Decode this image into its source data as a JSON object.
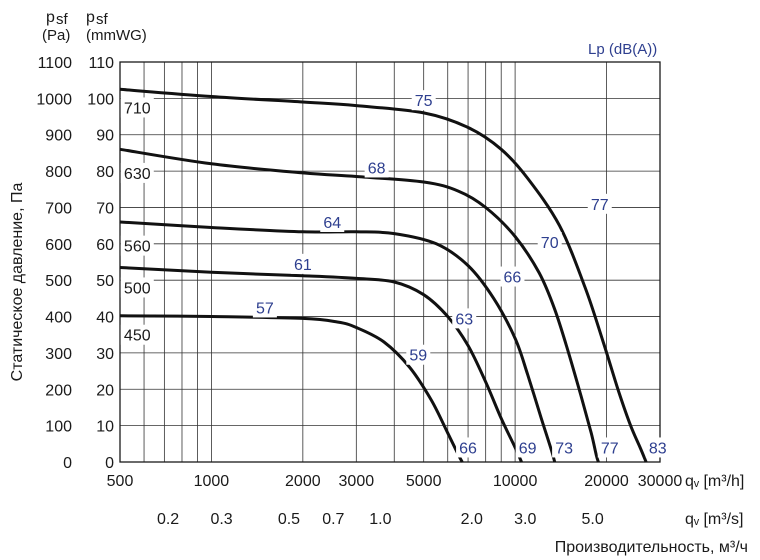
{
  "chart_data": {
    "type": "line",
    "title": "",
    "ylabel": "Статическое давление, Па",
    "ylabel_top_pa": "p",
    "ylabel_top_pa_sub": "sf",
    "ylabel_top_pa_unit": "(Pa)",
    "ylabel_top_mm": "p",
    "ylabel_top_mm_sub": "sf",
    "ylabel_top_mm_unit": "(mmWG)",
    "lp_label": "Lp (dB(A))",
    "xlabel": "Производительность, м³/ч",
    "x_unit_m3h": "qᵥ [m³/h]",
    "x_unit_m3s": "qᵥ [m³/s]",
    "x_scale": "log",
    "xlim": [
      500,
      30000
    ],
    "ylim": [
      0,
      1100
    ],
    "y_ticks_pa": [
      0,
      100,
      200,
      300,
      400,
      500,
      600,
      700,
      800,
      900,
      1000,
      1100
    ],
    "y_ticks_mmwg": [
      0,
      10,
      20,
      30,
      40,
      50,
      60,
      70,
      80,
      90,
      100,
      110
    ],
    "x_ticks_m3h": [
      {
        "value": 500,
        "label": "500"
      },
      {
        "value": 1000,
        "label": "1000"
      },
      {
        "value": 2000,
        "label": "2000"
      },
      {
        "value": 3000,
        "label": "3000"
      },
      {
        "value": 5000,
        "label": "5000"
      },
      {
        "value": 10000,
        "label": "10000"
      },
      {
        "value": 20000,
        "label": "20000"
      },
      {
        "value": 30000,
        "label": "30000"
      }
    ],
    "x_ticks_m3s": [
      {
        "value": 720,
        "label": "0.2"
      },
      {
        "value": 1080,
        "label": "0.3"
      },
      {
        "value": 1800,
        "label": "0.5"
      },
      {
        "value": 2520,
        "label": "0.7"
      },
      {
        "value": 3600,
        "label": "1.0"
      },
      {
        "value": 7200,
        "label": "2.0"
      },
      {
        "value": 10800,
        "label": "3.0"
      },
      {
        "value": 18000,
        "label": "5.0"
      }
    ],
    "gridlines_x": [
      600,
      700,
      800,
      900,
      1000,
      2000,
      3000,
      4000,
      5000,
      6000,
      7000,
      8000,
      9000,
      10000,
      20000,
      30000
    ],
    "series": [
      {
        "name": "710",
        "points": [
          [
            500,
            1025
          ],
          [
            1000,
            1005
          ],
          [
            2000,
            990
          ],
          [
            3000,
            980
          ],
          [
            5000,
            960
          ],
          [
            7000,
            920
          ],
          [
            9000,
            860
          ],
          [
            11000,
            780
          ],
          [
            14000,
            650
          ],
          [
            17000,
            480
          ],
          [
            19500,
            330
          ],
          [
            22000,
            190
          ],
          [
            24000,
            100
          ],
          [
            25800,
            40
          ],
          [
            27000,
            0
          ]
        ]
      },
      {
        "name": "630",
        "points": [
          [
            500,
            860
          ],
          [
            1000,
            820
          ],
          [
            2000,
            795
          ],
          [
            3000,
            785
          ],
          [
            5000,
            770
          ],
          [
            6500,
            745
          ],
          [
            8000,
            700
          ],
          [
            10000,
            620
          ],
          [
            12000,
            520
          ],
          [
            13500,
            420
          ],
          [
            15000,
            300
          ],
          [
            16500,
            180
          ],
          [
            17800,
            80
          ],
          [
            18500,
            20
          ],
          [
            18800,
            0
          ]
        ]
      },
      {
        "name": "560",
        "points": [
          [
            500,
            660
          ],
          [
            1000,
            645
          ],
          [
            2000,
            633
          ],
          [
            3000,
            633
          ],
          [
            4000,
            628
          ],
          [
            5500,
            600
          ],
          [
            7000,
            540
          ],
          [
            8500,
            450
          ],
          [
            10000,
            340
          ],
          [
            11000,
            240
          ],
          [
            12200,
            120
          ],
          [
            13200,
            30
          ],
          [
            13500,
            0
          ]
        ]
      },
      {
        "name": "500",
        "points": [
          [
            500,
            535
          ],
          [
            1000,
            522
          ],
          [
            2000,
            512
          ],
          [
            3000,
            505
          ],
          [
            4000,
            495
          ],
          [
            5000,
            460
          ],
          [
            6000,
            400
          ],
          [
            7000,
            320
          ],
          [
            8000,
            220
          ],
          [
            9000,
            120
          ],
          [
            10000,
            40
          ],
          [
            10500,
            0
          ]
        ]
      },
      {
        "name": "450",
        "points": [
          [
            500,
            402
          ],
          [
            1000,
            400
          ],
          [
            2000,
            395
          ],
          [
            2600,
            385
          ],
          [
            3000,
            370
          ],
          [
            3700,
            330
          ],
          [
            4500,
            260
          ],
          [
            5300,
            170
          ],
          [
            6000,
            80
          ],
          [
            6500,
            20
          ],
          [
            6700,
            0
          ]
        ]
      }
    ],
    "size_labels": [
      {
        "text": "710",
        "x": 570,
        "y": 975
      },
      {
        "text": "630",
        "x": 570,
        "y": 795
      },
      {
        "text": "560",
        "x": 570,
        "y": 595
      },
      {
        "text": "500",
        "x": 570,
        "y": 480
      },
      {
        "text": "450",
        "x": 570,
        "y": 350
      }
    ],
    "lp_labels": [
      {
        "text": "75",
        "x": 5000,
        "y": 995
      },
      {
        "text": "77",
        "x": 19000,
        "y": 710
      },
      {
        "text": "68",
        "x": 3500,
        "y": 810
      },
      {
        "text": "70",
        "x": 13000,
        "y": 605
      },
      {
        "text": "64",
        "x": 2500,
        "y": 660
      },
      {
        "text": "66",
        "x": 9800,
        "y": 510
      },
      {
        "text": "61",
        "x": 2000,
        "y": 545
      },
      {
        "text": "63",
        "x": 6800,
        "y": 395
      },
      {
        "text": "57",
        "x": 1500,
        "y": 425
      },
      {
        "text": "59",
        "x": 4800,
        "y": 295
      },
      {
        "text": "66",
        "x": 7000,
        "y": 40
      },
      {
        "text": "69",
        "x": 11000,
        "y": 40
      },
      {
        "text": "73",
        "x": 14500,
        "y": 40
      },
      {
        "text": "77",
        "x": 20500,
        "y": 40
      },
      {
        "text": "83",
        "x": 29500,
        "y": 40
      }
    ]
  }
}
